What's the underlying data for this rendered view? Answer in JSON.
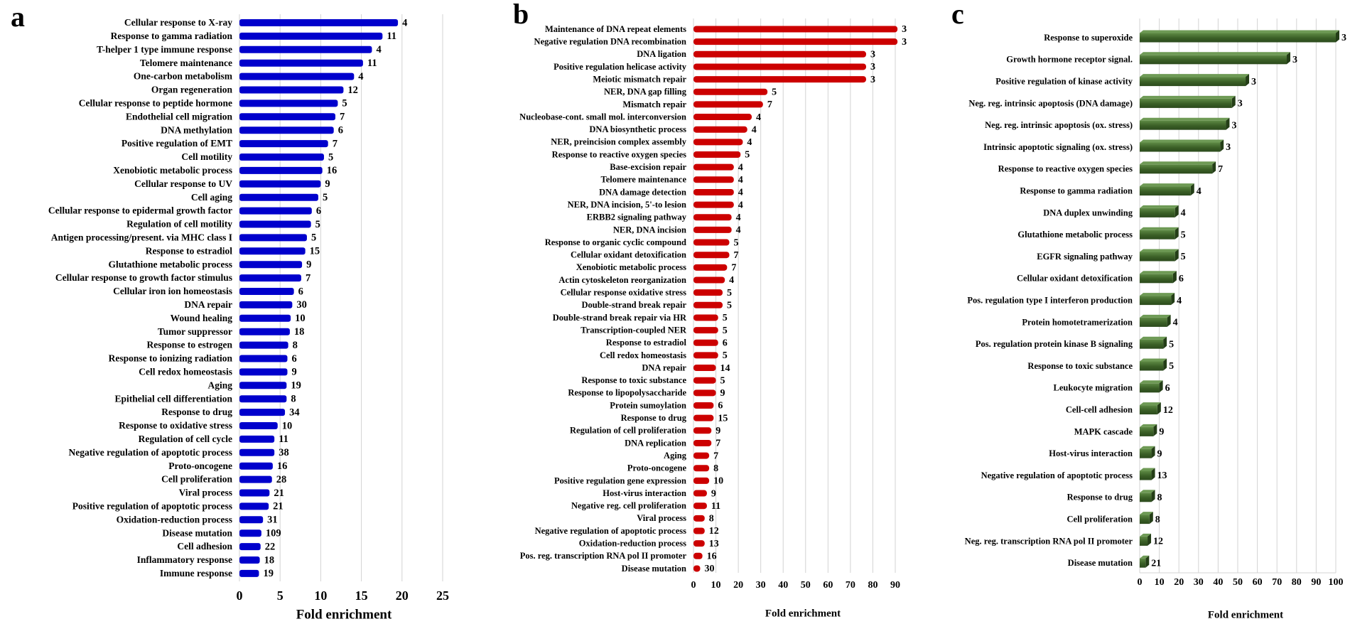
{
  "chart_data": [
    {
      "type": "bar",
      "orientation": "horizontal",
      "panel_label": "a",
      "color": "#0000CC",
      "title": "",
      "xlabel": "Fold enrichment",
      "ylabel": "",
      "xlim": [
        0,
        25
      ],
      "xticks": [
        0,
        5,
        10,
        15,
        20,
        25
      ],
      "grid": true,
      "categories": [
        "Cellular response to X-ray",
        "Response to gamma radiation",
        "T-helper 1 type immune response",
        "Telomere maintenance",
        "One-carbon metabolism",
        "Organ regeneration",
        "Cellular response to peptide hormone",
        "Endothelial cell migration",
        "DNA methylation",
        "Positive regulation of EMT",
        "Cell motility",
        "Xenobiotic metabolic process",
        "Cellular response to UV",
        "Cell aging",
        "Cellular response to epidermal growth factor",
        "Regulation of cell motility",
        "Antigen processing/present. via MHC class I",
        "Response to estradiol",
        "Glutathione metabolic process",
        "Cellular response to growth factor stimulus",
        "Cellular iron ion homeostasis",
        "DNA repair",
        "Wound healing",
        "Tumor suppressor",
        "Response to estrogen",
        "Response to ionizing radiation",
        "Cell redox homeostasis",
        "Aging",
        "Epithelial cell differentiation",
        "Response to drug",
        "Response to oxidative stress",
        "Regulation of cell cycle",
        "Negative regulation of apoptotic process",
        "Proto-oncogene",
        "Cell proliferation",
        "Viral process",
        "Positive regulation of apoptotic process",
        "Oxidation-reduction process",
        "Disease mutation",
        "Cell adhesion",
        "Inflammatory response",
        "Immune response"
      ],
      "values": [
        19.5,
        17.6,
        16.3,
        15.2,
        14.1,
        12.8,
        12.1,
        11.8,
        11.6,
        10.9,
        10.4,
        10.2,
        10.0,
        9.7,
        8.9,
        8.8,
        8.3,
        8.1,
        7.7,
        7.6,
        6.7,
        6.5,
        6.3,
        6.2,
        6.0,
        5.9,
        5.9,
        5.8,
        5.8,
        5.6,
        4.7,
        4.3,
        4.3,
        4.1,
        4.0,
        3.7,
        3.6,
        2.9,
        2.7,
        2.6,
        2.5,
        2.4
      ],
      "data_labels": [
        "4",
        "11",
        "4",
        "11",
        "4",
        "12",
        "5",
        "7",
        "6",
        "7",
        "5",
        "16",
        "9",
        "5",
        "6",
        "5",
        "5",
        "15",
        "9",
        "7",
        "6",
        "30",
        "10",
        "18",
        "8",
        "6",
        "9",
        "19",
        "8",
        "34",
        "10",
        "11",
        "38",
        "16",
        "28",
        "21",
        "21",
        "31",
        "109",
        "22",
        "18",
        "19"
      ]
    },
    {
      "type": "bar",
      "orientation": "horizontal",
      "panel_label": "b",
      "color": "#CC0000",
      "title": "",
      "xlabel": "Fold enrichment",
      "ylabel": "",
      "xlim": [
        0,
        90
      ],
      "xticks": [
        0,
        10,
        20,
        30,
        40,
        50,
        60,
        70,
        80,
        90
      ],
      "grid": true,
      "categories": [
        "Maintenance of DNA repeat elements",
        "Negative regulation DNA recombination",
        "DNA ligation",
        "Positive regulation helicase activity",
        "Meiotic mismatch repair",
        "NER, DNA gap filling",
        "Mismatch repair",
        "Nucleobase-cont. small mol. interconversion",
        "DNA biosynthetic process",
        "NER, preincision complex assembly",
        "Response to reactive oxygen species",
        "Base-excision repair",
        "Telomere maintenance",
        "DNA damage detection",
        "NER, DNA incision, 5'-to lesion",
        "ERBB2 signaling pathway",
        "NER, DNA incision",
        "Response to organic cyclic compound",
        "Cellular oxidant detoxification",
        "Xenobiotic metabolic process",
        "Actin cytoskeleton reorganization",
        "Cellular response oxidative stress",
        "Double-strand break repair",
        "Double-strand break repair via HR",
        "Transcription-coupled NER",
        "Response to estradiol",
        "Cell redox homeostasis",
        "DNA repair",
        "Response to toxic substance",
        "Response to lipopolysaccharide",
        "Protein sumoylation",
        "Response to drug",
        "Regulation of cell proliferation",
        "DNA replication",
        "Aging",
        "Proto-oncogene",
        "Positive regulation gene expression",
        "Host-virus interaction",
        "Negative reg. cell proliferation",
        "Viral process",
        "Negative regulation of apoptotic process",
        "Oxidation-reduction process",
        "Pos. reg. transcription RNA pol II promoter",
        "Disease mutation"
      ],
      "values": [
        91,
        91,
        77,
        77,
        77,
        33,
        31,
        26,
        24,
        22,
        21,
        18,
        18,
        18,
        18,
        17,
        17,
        16,
        16,
        15,
        14,
        13,
        13,
        11,
        11,
        11,
        11,
        10,
        10,
        10,
        9,
        9,
        8,
        8,
        7,
        7,
        7,
        6,
        6,
        5,
        5,
        5,
        4,
        3
      ],
      "data_labels": [
        "3",
        "3",
        "3",
        "3",
        "3",
        "5",
        "7",
        "4",
        "4",
        "4",
        "5",
        "4",
        "4",
        "4",
        "4",
        "4",
        "4",
        "5",
        "7",
        "7",
        "4",
        "5",
        "5",
        "5",
        "5",
        "6",
        "5",
        "14",
        "5",
        "9",
        "6",
        "15",
        "9",
        "7",
        "7",
        "8",
        "10",
        "9",
        "11",
        "8",
        "12",
        "13",
        "16",
        "30"
      ]
    },
    {
      "type": "bar",
      "orientation": "horizontal",
      "panel_label": "c",
      "color": "#3A5F26",
      "title": "",
      "xlabel": "Fold enrichment",
      "ylabel": "",
      "xlim": [
        0,
        100
      ],
      "xticks": [
        0,
        10,
        20,
        30,
        40,
        50,
        60,
        70,
        80,
        90,
        100
      ],
      "grid": true,
      "categories": [
        "Response to superoxide",
        "Growth hormone receptor signal.",
        "Positive regulation of kinase activity",
        "Neg. reg. intrinsic apoptosis (DNA damage)",
        "Neg. reg. intrinsic apoptosis (ox. stress)",
        "Intrinsic apoptotic signaling (ox. stress)",
        "Response to reactive oxygen species",
        "Response to gamma radiation",
        "DNA duplex unwinding",
        "Glutathione metabolic process",
        "EGFR signaling pathway",
        "Cellular oxidant detoxification",
        "Pos. regulation type I interferon production",
        "Protein homotetramerization",
        "Pos. regulation protein kinase B signaling",
        "Response to toxic substance",
        "Leukocyte migration",
        "Cell-cell adhesion",
        "MAPK cascade",
        "Host-virus interaction",
        "Negative regulation of apoptotic process",
        "Response to drug",
        "Cell proliferation",
        "Neg. reg. transcription RNA pol II promoter",
        "Disease mutation"
      ],
      "values": [
        100,
        75,
        54,
        47,
        44,
        41,
        37,
        26,
        18,
        18,
        18,
        17,
        16,
        14,
        12,
        12,
        10,
        9,
        7,
        6,
        6,
        6,
        5,
        4,
        3
      ],
      "data_labels": [
        "3",
        "3",
        "3",
        "3",
        "3",
        "3",
        "7",
        "4",
        "4",
        "5",
        "5",
        "6",
        "4",
        "4",
        "5",
        "5",
        "6",
        "12",
        "9",
        "9",
        "13",
        "8",
        "8",
        "12",
        "21"
      ]
    }
  ]
}
